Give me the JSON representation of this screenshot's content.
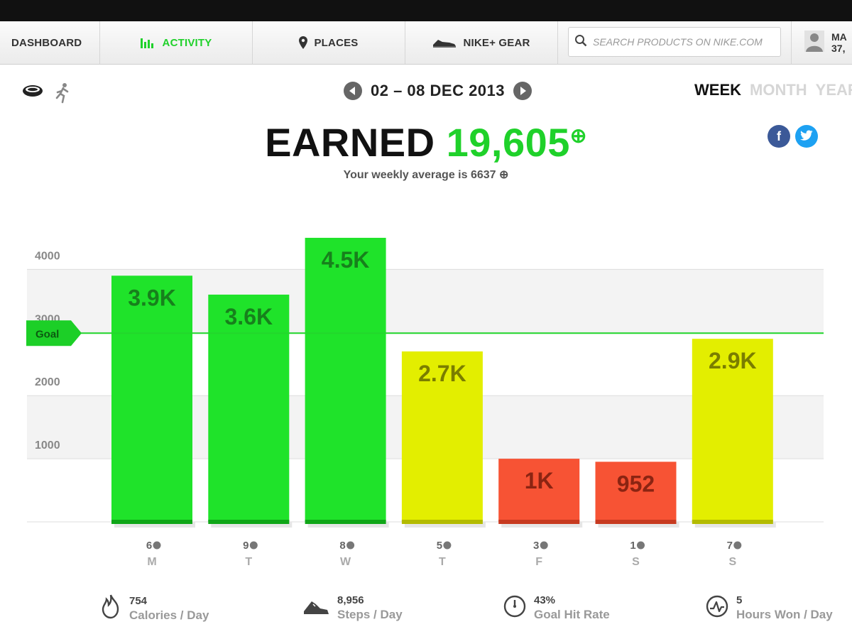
{
  "nav": {
    "items": [
      {
        "label": "DASHBOARD",
        "icon": "none"
      },
      {
        "label": "ACTIVITY",
        "icon": "bar-chart-icon"
      },
      {
        "label": "PLACES",
        "icon": "map-pin-icon"
      },
      {
        "label": "NIKE+ GEAR",
        "icon": "shoe-icon"
      }
    ],
    "search_placeholder": "SEARCH PRODUCTS ON NIKE.COM",
    "user_name": "MA",
    "user_points": "37,"
  },
  "date_range": "02 – 08 DEC 2013",
  "view_tabs": {
    "week": "WEEK",
    "month": "MONTH",
    "year": "YEAR"
  },
  "headline": {
    "earned_word": "EARNED",
    "earned_value": "19,605",
    "plus": "⊕"
  },
  "weekly_average": "Your weekly average is 6637",
  "colors": {
    "green": "#1fe32a",
    "yellow": "#e3ee00",
    "red": "#f75334",
    "goal_line": "#22d72c",
    "accent": "#1fd12a"
  },
  "chart_data": {
    "type": "bar",
    "categories": [
      "M",
      "T",
      "W",
      "T",
      "F",
      "S",
      "S"
    ],
    "values": [
      3900,
      3600,
      4500,
      2700,
      1000,
      952,
      2900
    ],
    "value_labels": [
      "3.9K",
      "3.6K",
      "4.5K",
      "2.7K",
      "1K",
      "952",
      "2.9K"
    ],
    "hours_won": [
      "6",
      "9",
      "8",
      "5",
      "3",
      "1",
      "7"
    ],
    "bar_status": [
      "green",
      "green",
      "green",
      "yellow",
      "red",
      "red",
      "yellow"
    ],
    "goal": 3000,
    "goal_label": "Goal",
    "y_ticks": [
      1000,
      2000,
      3000,
      4000
    ],
    "ylim": [
      0,
      4500
    ],
    "grid": true
  },
  "stats": [
    {
      "value": "754",
      "label": "Calories / Day",
      "icon": "flame-icon"
    },
    {
      "value": "8,956",
      "label": "Steps / Day",
      "icon": "shoe-icon"
    },
    {
      "value": "43%",
      "label": "Goal Hit Rate",
      "icon": "clock-icon"
    },
    {
      "value": "5",
      "label": "Hours Won / Day",
      "icon": "pulse-icon"
    }
  ]
}
